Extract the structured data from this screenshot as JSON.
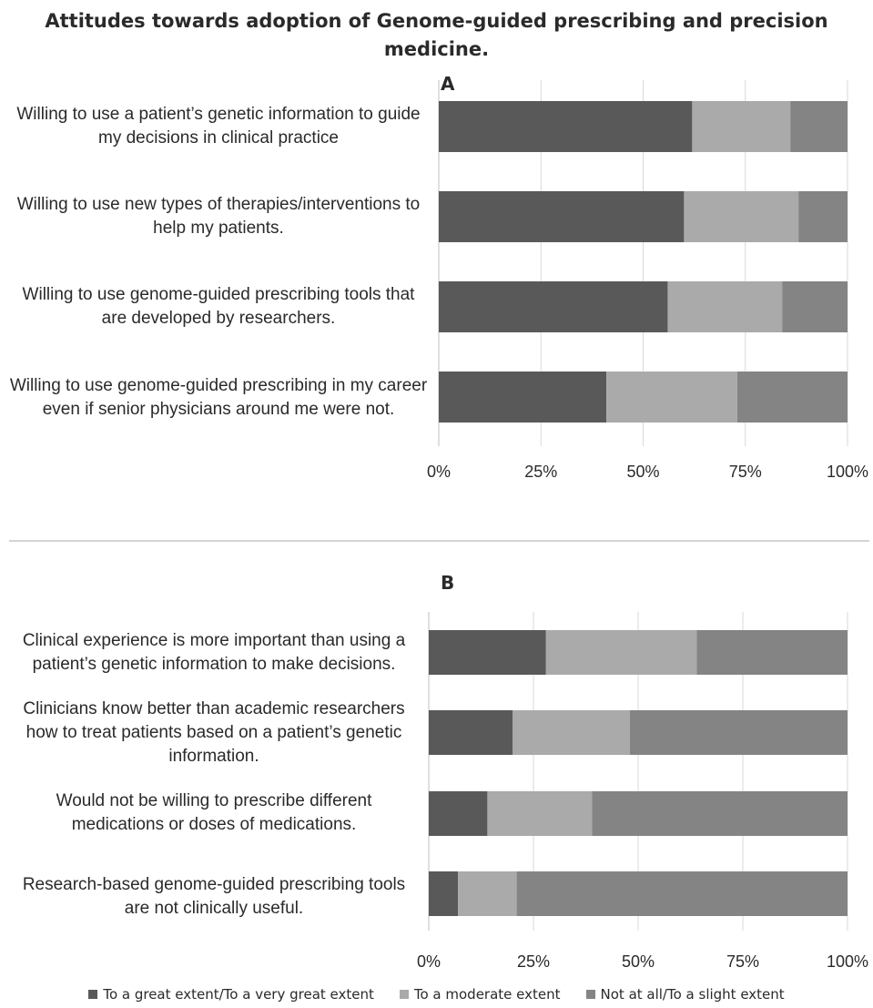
{
  "title": "Attitudes towards adoption of Genome-guided prescribing and precision medicine.",
  "legend": [
    {
      "label": "To a great extent/To a very great extent",
      "color": "#595959"
    },
    {
      "label": "To a moderate extent",
      "color": "#aaaaaa"
    },
    {
      "label": "Not at all/To a slight extent",
      "color": "#848484"
    }
  ],
  "chart_data": [
    {
      "type": "bar",
      "orientation": "horizontal",
      "stacked": "percent",
      "panel": "A",
      "categories": [
        "Willing to use a patient’s genetic information to guide my decisions in clinical practice",
        "Willing to use new types of therapies/interventions to help my patients.",
        "Willing to use genome-guided prescribing tools that are developed by researchers.",
        "Willing to use genome-guided prescribing in my career even if senior physicians around me were not."
      ],
      "series": [
        {
          "name": "To a great extent/To a very great extent",
          "values": [
            62,
            60,
            56,
            41
          ]
        },
        {
          "name": "To a moderate extent",
          "values": [
            24,
            28,
            28,
            32
          ]
        },
        {
          "name": "Not at all/To a slight extent",
          "values": [
            14,
            12,
            16,
            27
          ]
        }
      ],
      "xticks": [
        "0%",
        "25%",
        "50%",
        "75%",
        "100%"
      ],
      "xlim": [
        0,
        100
      ],
      "grid": true,
      "legend_position": "bottom"
    },
    {
      "type": "bar",
      "orientation": "horizontal",
      "stacked": "percent",
      "panel": "B",
      "categories": [
        "Clinical experience is more important than using a patient’s genetic information to make decisions.",
        "Clinicians know better than academic researchers how to treat patients based on a patient’s genetic information.",
        "Would not be willing to prescribe different medications or doses of medications.",
        "Research-based genome-guided prescribing tools are not clinically useful."
      ],
      "series": [
        {
          "name": "To a great extent/To a very great extent",
          "values": [
            28,
            20,
            14,
            7
          ]
        },
        {
          "name": "To a moderate extent",
          "values": [
            36,
            28,
            25,
            14
          ]
        },
        {
          "name": "Not at all/To a slight extent",
          "values": [
            36,
            52,
            61,
            79
          ]
        }
      ],
      "xticks": [
        "0%",
        "25%",
        "50%",
        "75%",
        "100%"
      ],
      "xlim": [
        0,
        100
      ],
      "grid": true,
      "legend_position": "bottom"
    }
  ]
}
